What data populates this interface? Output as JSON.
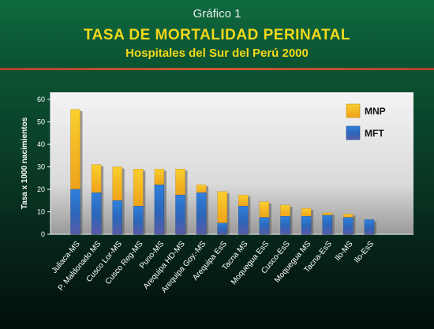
{
  "header": {
    "figure_label": "Gráfico 1",
    "title": "TASA DE MORTALIDAD PERINATAL",
    "subtitle": "Hospitales del Sur del Perú 2000"
  },
  "colors": {
    "mft": "#2f73c7",
    "mnp": "#f2b321",
    "plot_bg": "#e6e6e6",
    "title": "#f3d81a",
    "rule": "#c24b30"
  },
  "chart_data": {
    "type": "bar",
    "stacked": true,
    "ylabel": "Tasa x 1000 nacimientos",
    "xlabel": "",
    "ylim": [
      0,
      60
    ],
    "yticks": [
      0,
      10,
      20,
      30,
      40,
      50,
      60
    ],
    "grid": false,
    "legend_position": "top-right",
    "categories": [
      "Juliaca-MS",
      "P. Maldonado MS",
      "Cusco Lor-MS",
      "Cusco Reg-MS",
      "Puno-MS",
      "Arequipa HD-MS",
      "Arequipa Goy.-MS",
      "Arequipa EsS",
      "Tacna MS",
      "Moquegua EsS",
      "Cusco-EsS",
      "Moquegua MS",
      "Tacna-EsS",
      "Ilo-MS",
      "Ilo-EsS"
    ],
    "series": [
      {
        "name": "MFT",
        "values": [
          20,
          18.5,
          15,
          12.5,
          22,
          17.5,
          18.5,
          5,
          12.5,
          7.5,
          8,
          8,
          8.5,
          7.5,
          6.5
        ]
      },
      {
        "name": "MNP",
        "values": [
          35.5,
          12.5,
          15,
          16.5,
          7,
          11.5,
          3.5,
          14,
          5,
          7,
          5,
          3.5,
          1,
          1.5,
          0
        ]
      }
    ]
  }
}
